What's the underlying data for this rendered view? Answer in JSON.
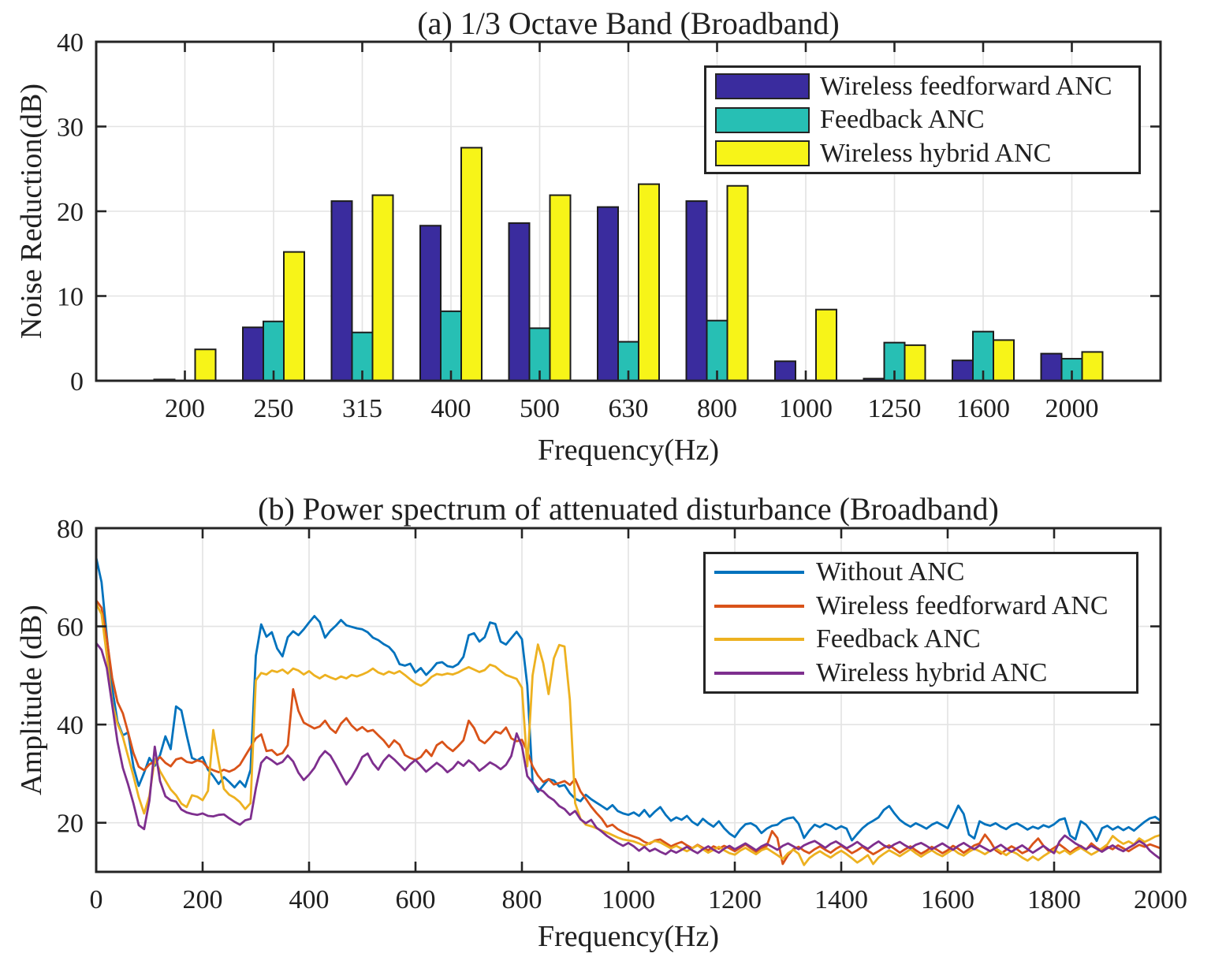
{
  "chart_data": [
    {
      "type": "bar",
      "panel": "a",
      "title": "(a) 1/3 Octave Band (Broadband)",
      "xlabel": "Frequency(Hz)",
      "ylabel": "Noise Reduction(dB)",
      "categories": [
        "200",
        "250",
        "315",
        "400",
        "500",
        "630",
        "800",
        "1000",
        "1250",
        "1600",
        "2000"
      ],
      "series": [
        {
          "name": "Wireless feedforward ANC",
          "color": "#3A2C9E",
          "values": [
            0.15,
            6.3,
            21.2,
            18.3,
            18.6,
            20.5,
            21.2,
            2.3,
            0.25,
            2.4,
            3.2
          ]
        },
        {
          "name": "Feedback ANC",
          "color": "#27BFB4",
          "values": [
            0,
            7.0,
            5.7,
            8.2,
            6.2,
            4.6,
            7.1,
            0,
            4.5,
            5.8,
            2.6
          ]
        },
        {
          "name": "Wireless hybrid ANC",
          "color": "#F7F418",
          "values": [
            3.7,
            15.2,
            21.9,
            27.5,
            21.9,
            23.2,
            23.0,
            8.4,
            4.2,
            4.8,
            3.4
          ]
        }
      ],
      "ylim": [
        0,
        40
      ],
      "yticks": [
        0,
        10,
        20,
        30,
        40
      ],
      "grid": true,
      "legend_position": "upper right"
    },
    {
      "type": "line",
      "panel": "b",
      "title": "(b) Power spectrum of attenuated disturbance (Broadband)",
      "xlabel": "Frequency(Hz)",
      "ylabel": "Amplitude (dB)",
      "x_start": 0,
      "x_step": 10,
      "xlim": [
        0,
        2000
      ],
      "ylim": [
        10,
        80
      ],
      "xticks": [
        0,
        200,
        400,
        600,
        800,
        1000,
        1200,
        1400,
        1600,
        1800,
        2000
      ],
      "yticks": [
        20,
        40,
        60,
        80
      ],
      "grid": true,
      "legend_position": "upper right",
      "series": [
        {
          "name": "Without ANC",
          "color": "#0072BD",
          "values": [
            74,
            69,
            58,
            47.5,
            40.6,
            37.8,
            38.4,
            31.4,
            27.5,
            30.2,
            33.2,
            31.6,
            33.8,
            37.6,
            35,
            43.7,
            42.9,
            37.8,
            33.2,
            32.7,
            33.4,
            30.8,
            29.5,
            27.9,
            29.3,
            28.3,
            27.2,
            28.5,
            27.3,
            30.8,
            54,
            60.4,
            57.9,
            58.8,
            55.5,
            53.9,
            57.8,
            59,
            58.2,
            59.4,
            60.8,
            62.1,
            60.9,
            57.7,
            59.1,
            60.1,
            61.3,
            60.2,
            59.9,
            59.6,
            59.4,
            58.8,
            57.7,
            57.2,
            56.4,
            55.8,
            54.6,
            52.3,
            52,
            52.4,
            50.6,
            51.5,
            50.1,
            51.2,
            52.5,
            52.7,
            51.9,
            51.7,
            52.3,
            53.8,
            58.2,
            58.6,
            56.9,
            57.8,
            60.8,
            60.5,
            56.9,
            56.3,
            57.6,
            58.9,
            57.4,
            48,
            28.4,
            26.3,
            27.6,
            28.9,
            28.6,
            27.4,
            27.7,
            26,
            24.9,
            24.4,
            25.7,
            24.8,
            24.1,
            23.4,
            22.7,
            23.6,
            22.4,
            21.9,
            21.6,
            22.1,
            21.4,
            22.6,
            21.2,
            22.3,
            23.2,
            21.6,
            20.4,
            21.1,
            20.6,
            21.4,
            20.2,
            19.5,
            20.8,
            19.9,
            19.2,
            20.3,
            18.9,
            17.8,
            17.1,
            18.6,
            19.7,
            19.9,
            19.3,
            17.9,
            18.8,
            19.4,
            19.6,
            20.5,
            20.9,
            21.1,
            19.8,
            16.9,
            18.4,
            19.6,
            19.1,
            19.8,
            19.4,
            18.7,
            19.3,
            18.8,
            16.4,
            17.7,
            18.9,
            19.8,
            20.4,
            21.1,
            22.6,
            23.4,
            21.9,
            20.6,
            19.8,
            19.2,
            19.9,
            19.4,
            18.8,
            19.6,
            20.1,
            19.5,
            18.9,
            21.2,
            23.5,
            21.8,
            17.6,
            16.8,
            20.3,
            19.7,
            19.4,
            19.9,
            19.2,
            18.7,
            19.5,
            19.9,
            19.3,
            18.6,
            19.2,
            18.8,
            19.5,
            19.1,
            19.7,
            20.6,
            20.9,
            17.4,
            16.6,
            20.3,
            19.6,
            18.2,
            16.3,
            18.9,
            19.4,
            18.6,
            19.2,
            18.5,
            19.1,
            18.4,
            19.3,
            20.2,
            20.9,
            21.2,
            20.4
          ]
        },
        {
          "name": "Wireless feedforward ANC",
          "color": "#D95319",
          "values": [
            65.3,
            63.8,
            57.5,
            49.5,
            44.6,
            42.3,
            38.4,
            34.2,
            31.4,
            30.7,
            31.9,
            32.5,
            33.4,
            32.2,
            31.5,
            32.9,
            33.2,
            32.4,
            32.2,
            32.7,
            32.4,
            31.2,
            30.7,
            30.3,
            30.8,
            30.4,
            30.9,
            31.8,
            33.6,
            35.4,
            37.2,
            38,
            34.6,
            34.8,
            33.8,
            34.2,
            35.8,
            47.2,
            42.8,
            40.4,
            39.8,
            39.2,
            39.6,
            40.8,
            39.2,
            38.3,
            40.2,
            41.3,
            39.8,
            38.8,
            39.5,
            38.6,
            38.9,
            37.8,
            36.8,
            35.4,
            36.8,
            35.9,
            33.8,
            33.2,
            32.8,
            33.4,
            34.8,
            33.6,
            35.8,
            36.5,
            35.4,
            34.6,
            35.6,
            36.8,
            40.8,
            39.3,
            36.9,
            36.2,
            37.3,
            38.6,
            38.2,
            39.4,
            37.2,
            36.6,
            36.9,
            34.5,
            31.5,
            29.6,
            28.3,
            28.9,
            27.8,
            28.1,
            28.5,
            27.7,
            28.9,
            26.4,
            24.9,
            23.3,
            22,
            20.8,
            19.2,
            19.6,
            18.7,
            18.1,
            17.6,
            17.2,
            16.8,
            16.1,
            15.7,
            16.4,
            16.6,
            15.9,
            15.2,
            15.7,
            16.1,
            15.4,
            14.8,
            15.5,
            14.9,
            14.4,
            15.2,
            14.7,
            15.3,
            14.8,
            14.2,
            14.9,
            15.6,
            14.8,
            14.1,
            14.7,
            15.3,
            18.3,
            16.9,
            11.6,
            13.4,
            14.6,
            15.1,
            14.3,
            13.8,
            14.6,
            15.2,
            14.5,
            13.9,
            14.7,
            15.3,
            14.6,
            13.8,
            14.4,
            15.1,
            14.3,
            13.6,
            14.2,
            14.9,
            15.4,
            14.7,
            13.9,
            14.6,
            15.2,
            14.4,
            13.7,
            14.3,
            15.1,
            14.5,
            13.8,
            14.4,
            15.3,
            14.7,
            13.9,
            14.6,
            15.4,
            15.8,
            17.6,
            16.2,
            14.4,
            13.7,
            14.5,
            15.2,
            14.6,
            13.8,
            14.3,
            15.7,
            16.8,
            15.3,
            14.2,
            14.9,
            15.6,
            14.8,
            13.9,
            14.7,
            15.3,
            14.5,
            15.8,
            14.9,
            14.3,
            15.1,
            14.6,
            15.4,
            14.8,
            14.2,
            14.9,
            15.5,
            15.1,
            15.6,
            15.2,
            14.8
          ]
        },
        {
          "name": "Feedback ANC",
          "color": "#EDB120",
          "values": [
            64.6,
            62.5,
            54,
            44.5,
            40.2,
            37.5,
            33.5,
            29.5,
            25.2,
            21.9,
            25.5,
            33,
            30.5,
            28.6,
            26.8,
            25.6,
            23.9,
            23.2,
            25.6,
            25.3,
            24.6,
            26.5,
            38.9,
            32.5,
            26.9,
            25.7,
            25.1,
            24.2,
            22.8,
            24,
            49,
            50.5,
            50.2,
            51,
            50.7,
            51.2,
            50.4,
            51.4,
            51,
            50.2,
            50.9,
            50,
            49.4,
            50.1,
            49.6,
            49.2,
            49.8,
            49.4,
            50.1,
            49.8,
            50.2,
            50.7,
            51.4,
            50.6,
            50.2,
            50.8,
            50.4,
            50.9,
            50.1,
            49.2,
            48.4,
            47.9,
            48.6,
            49.7,
            50.3,
            50.1,
            50.4,
            50.2,
            50.6,
            51.2,
            51.7,
            51.2,
            50.7,
            51.1,
            52.2,
            51.8,
            50.9,
            50.1,
            49.7,
            49.3,
            47.5,
            31.5,
            50,
            56.3,
            52.5,
            46.2,
            53.5,
            56.2,
            55.9,
            45,
            24,
            20.8,
            19.6,
            19.3,
            18.9,
            18.4,
            18,
            17.5,
            17,
            16.6,
            16.4,
            16.2,
            15.8,
            15.3,
            15.9,
            16.3,
            16,
            15.4,
            14.8,
            15.3,
            14.7,
            14.2,
            14.8,
            15.4,
            14.6,
            13.9,
            14.5,
            15.1,
            14.4,
            13.8,
            13.5,
            14.3,
            14.9,
            14.2,
            13.6,
            14.4,
            14.8,
            14.1,
            13.4,
            12.6,
            13.8,
            14.5,
            13.7,
            11.4,
            12.8,
            13.6,
            14.2,
            13.5,
            12.9,
            13.7,
            14.3,
            13.6,
            12.8,
            11.9,
            12.6,
            13.4,
            11.6,
            12.9,
            13.7,
            14.4,
            13.8,
            13.2,
            13.9,
            14.6,
            13.8,
            13.1,
            13.8,
            14.4,
            13.7,
            13.2,
            13.9,
            14.6,
            13.8,
            13.3,
            14.1,
            14.7,
            14.2,
            13.6,
            14.3,
            14.8,
            14.1,
            13.4,
            14.2,
            13.7,
            12.9,
            12.3,
            13.1,
            12.4,
            13.2,
            13.9,
            14.5,
            13.8,
            14.4,
            13.6,
            14.3,
            14.9,
            14.2,
            13.5,
            14.1,
            14.8,
            15.6,
            17.3,
            16.4,
            15.7,
            16.2,
            15.6,
            16.8,
            16.1,
            16.6,
            17.2,
            17.5
          ]
        },
        {
          "name": "Wireless hybrid ANC",
          "color": "#7E2F8E",
          "values": [
            56.6,
            55.2,
            51.5,
            44,
            36.5,
            31.2,
            27.8,
            23.9,
            19.5,
            18.7,
            24.5,
            35.5,
            28.5,
            25.4,
            24.6,
            24.3,
            22.7,
            22.1,
            21.8,
            21.6,
            21.9,
            21.4,
            21.3,
            21.6,
            21.7,
            20.9,
            20.2,
            19.6,
            20.5,
            20.8,
            27,
            32.2,
            33.4,
            32.7,
            31.9,
            32.4,
            33.7,
            32.5,
            30.2,
            28.7,
            29.8,
            31.2,
            33.3,
            34.6,
            33.7,
            31.8,
            29.8,
            27.8,
            29.3,
            31.2,
            33.4,
            34.1,
            32.1,
            30.8,
            32.6,
            33.8,
            32.9,
            31.8,
            30.7,
            31.9,
            32.8,
            31.6,
            30.4,
            31.3,
            32.2,
            31.4,
            30.3,
            31.1,
            32.4,
            31.6,
            32.7,
            31.9,
            30.6,
            31.4,
            32.3,
            31.7,
            30.9,
            31.8,
            33.6,
            38.2,
            35.6,
            29.5,
            28.2,
            26.9,
            26.4,
            25.3,
            24.6,
            23.4,
            22.8,
            21.6,
            22.4,
            20.7,
            19.9,
            20.6,
            19,
            18.2,
            17.3,
            16.6,
            15.9,
            15.3,
            15.9,
            15.2,
            14.3,
            15.1,
            14.2,
            14.7,
            14.1,
            13.6,
            14.4,
            13.9,
            14.5,
            15.1,
            14.4,
            13.8,
            14.6,
            15.2,
            14.5,
            13.9,
            14.7,
            15.3,
            14.6,
            15.2,
            15.8,
            15.1,
            14.4,
            15.2,
            15.7,
            15.1,
            14.5,
            15.3,
            15.8,
            15.2,
            14.6,
            15.4,
            15.9,
            16.3,
            15.6,
            14.9,
            15.7,
            16.2,
            15.5,
            14.8,
            15.4,
            16.1,
            15.3,
            14.7,
            15.5,
            16.2,
            15.4,
            14.9,
            15.6,
            16.1,
            15.4,
            14.8,
            15.5,
            15.9,
            15.3,
            14.6,
            15.2,
            15.8,
            15.1,
            14.5,
            15.3,
            15.9,
            15.2,
            14.6,
            15.4,
            14.8,
            14.2,
            14.9,
            15.5,
            14.7,
            14.1,
            14.8,
            15.4,
            14.6,
            13.9,
            14.6,
            15.3,
            14.5,
            13.8,
            16.2,
            17.4,
            16.6,
            15.8,
            15.2,
            14.6,
            15.3,
            14.7,
            14.1,
            14.8,
            15.4,
            14.7,
            14.2,
            14.9,
            15.5,
            16.3,
            15.6,
            14.3,
            13.4,
            12.6
          ]
        }
      ]
    }
  ],
  "style": {
    "axis_color": "#242424",
    "grid_color": "#E3E3E3",
    "bar_edge_color": "#1C1C1C",
    "background": "#FFFFFF"
  }
}
